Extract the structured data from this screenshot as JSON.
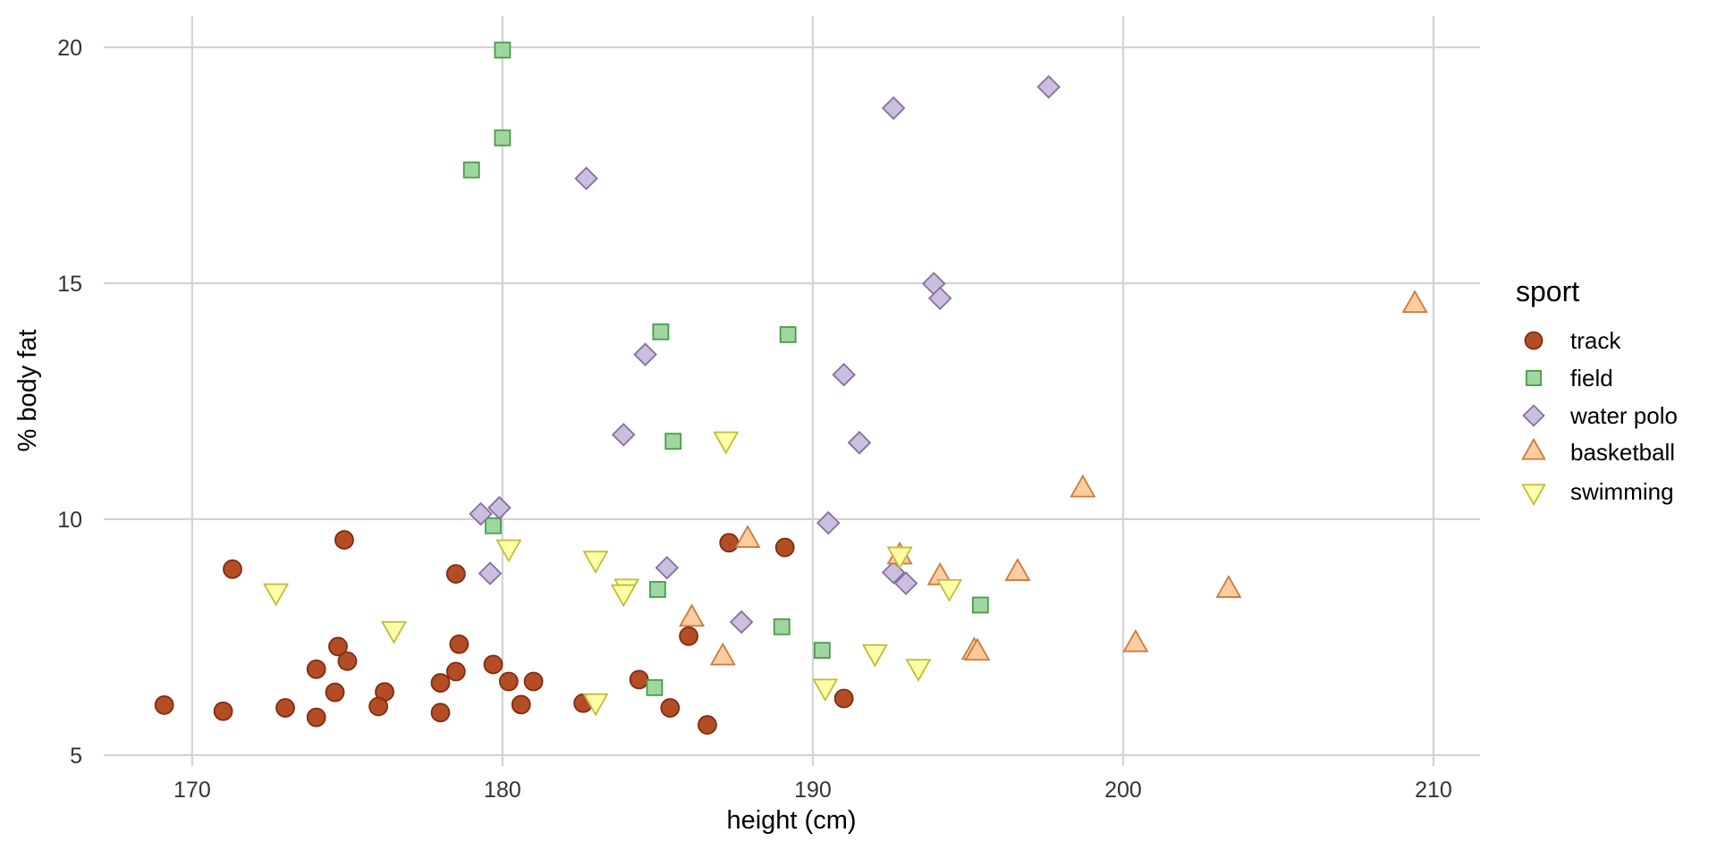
{
  "chart_data": {
    "type": "scatter",
    "xlabel": "height (cm)",
    "ylabel": "% body fat",
    "xlim": [
      167.15,
      211.5
    ],
    "ylim": [
      4.77,
      20.66
    ],
    "x_ticks": [
      170,
      180,
      190,
      200,
      210
    ],
    "y_ticks": [
      5,
      10,
      15,
      20
    ],
    "x_tick_labels": [
      "170",
      "180",
      "190",
      "200",
      "210"
    ],
    "y_tick_labels": [
      "5",
      "10",
      "15",
      "20"
    ],
    "grid": true,
    "legend": {
      "title": "sport",
      "placement": "right"
    },
    "series": [
      {
        "name": "track",
        "shape": "circle",
        "fill": "#B0431A",
        "stroke": "#7E2E10",
        "points": [
          [
            169.1,
            6.06
          ],
          [
            171.0,
            5.93
          ],
          [
            171.3,
            8.94
          ],
          [
            173.0,
            6.0
          ],
          [
            174.0,
            5.8
          ],
          [
            174.0,
            6.82
          ],
          [
            174.6,
            6.33
          ],
          [
            174.7,
            7.3
          ],
          [
            175.0,
            6.99
          ],
          [
            174.9,
            9.56
          ],
          [
            176.2,
            6.34
          ],
          [
            176.0,
            6.03
          ],
          [
            178.0,
            6.53
          ],
          [
            178.0,
            5.9
          ],
          [
            178.5,
            8.84
          ],
          [
            178.5,
            6.77
          ],
          [
            178.6,
            7.35
          ],
          [
            179.7,
            6.92
          ],
          [
            180.2,
            6.56
          ],
          [
            181.0,
            6.56
          ],
          [
            180.6,
            6.07
          ],
          [
            182.6,
            6.1
          ],
          [
            184.4,
            6.6
          ],
          [
            185.4,
            6.0
          ],
          [
            186.0,
            7.52
          ],
          [
            186.6,
            5.64
          ],
          [
            187.3,
            9.5
          ],
          [
            189.1,
            9.4
          ],
          [
            191.0,
            6.2
          ]
        ]
      },
      {
        "name": "field",
        "shape": "square",
        "fill": "#9BD59B",
        "stroke": "#4A9A4A",
        "points": [
          [
            180.0,
            19.94
          ],
          [
            180.0,
            18.08
          ],
          [
            179.0,
            17.4
          ],
          [
            185.1,
            13.97
          ],
          [
            189.2,
            13.91
          ],
          [
            185.5,
            11.65
          ],
          [
            179.7,
            9.86
          ],
          [
            185.0,
            8.51
          ],
          [
            189.0,
            7.72
          ],
          [
            190.3,
            7.22
          ],
          [
            184.9,
            6.43
          ],
          [
            195.4,
            8.18
          ]
        ]
      },
      {
        "name": "water polo",
        "shape": "diamond",
        "fill": "#C8BADC",
        "stroke": "#84709E",
        "points": [
          [
            182.7,
            17.22
          ],
          [
            192.6,
            18.71
          ],
          [
            197.6,
            19.16
          ],
          [
            193.9,
            14.99
          ],
          [
            194.1,
            14.68
          ],
          [
            184.6,
            13.49
          ],
          [
            191.0,
            13.06
          ],
          [
            183.9,
            11.79
          ],
          [
            191.5,
            11.62
          ],
          [
            179.3,
            10.11
          ],
          [
            179.9,
            10.24
          ],
          [
            190.5,
            9.92
          ],
          [
            179.6,
            8.85
          ],
          [
            185.3,
            8.97
          ],
          [
            192.6,
            8.87
          ],
          [
            193.0,
            8.64
          ],
          [
            187.7,
            7.82
          ]
        ]
      },
      {
        "name": "basketball",
        "shape": "triangle-up",
        "fill": "#FDC99B",
        "stroke": "#C97C3C",
        "points": [
          [
            209.4,
            14.54
          ],
          [
            198.7,
            10.63
          ],
          [
            187.9,
            9.56
          ],
          [
            192.8,
            9.21
          ],
          [
            194.1,
            8.77
          ],
          [
            196.6,
            8.86
          ],
          [
            203.4,
            8.5
          ],
          [
            186.1,
            7.89
          ],
          [
            187.1,
            7.07
          ],
          [
            200.4,
            7.35
          ],
          [
            195.2,
            7.19
          ],
          [
            195.3,
            7.17
          ]
        ]
      },
      {
        "name": "swimming",
        "shape": "triangle-down",
        "fill": "#FFFFA3",
        "stroke": "#BDBD3A",
        "points": [
          [
            172.7,
            8.47
          ],
          [
            176.5,
            7.67
          ],
          [
            180.2,
            9.4
          ],
          [
            183.0,
            9.16
          ],
          [
            184.0,
            8.57
          ],
          [
            183.9,
            8.45
          ],
          [
            183.0,
            6.14
          ],
          [
            187.2,
            11.69
          ],
          [
            190.4,
            6.45
          ],
          [
            192.0,
            7.18
          ],
          [
            192.8,
            9.25
          ],
          [
            193.4,
            6.87
          ],
          [
            194.4,
            8.56
          ]
        ]
      }
    ]
  }
}
